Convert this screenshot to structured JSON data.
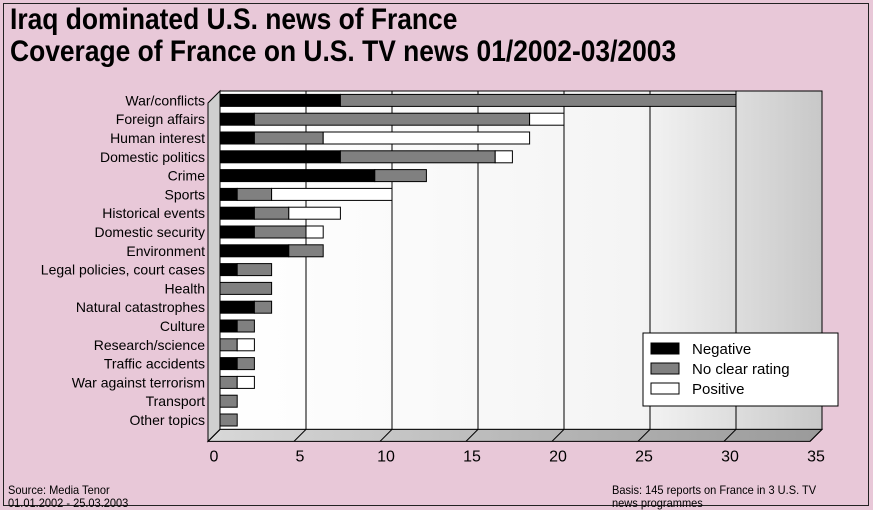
{
  "header": {
    "title_line1": "Iraq dominated U.S. news of France",
    "title_line2": "Coverage of France on U.S. TV news 01/2002-03/2003"
  },
  "footer": {
    "source_line1": "Source: Media Tenor",
    "source_line2": "01.01.2002 - 25.03.2003",
    "basis_line1": "Basis: 145 reports on France in 3 U.S. TV",
    "basis_line2": "news programmes"
  },
  "colors": {
    "negative": "#000000",
    "no_clear_rating": "#808080",
    "positive": "#ffffff",
    "background": "#e8c8d8"
  },
  "chart_data": {
    "type": "bar",
    "orientation": "horizontal",
    "stacked": true,
    "title": "Coverage of France on U.S. TV news 01/2002-03/2003",
    "xlim": [
      0,
      35
    ],
    "xticks": [
      0,
      5,
      10,
      15,
      20,
      25,
      30,
      35
    ],
    "grid": true,
    "legend_position": "bottom-right",
    "categories": [
      "War/conflicts",
      "Foreign affairs",
      "Human interest",
      "Domestic politics",
      "Crime",
      "Sports",
      "Historical events",
      "Domestic security",
      "Environment",
      "Legal policies, court cases",
      "Health",
      "Natural catastrophes",
      "Culture",
      "Research/science",
      "Traffic accidents",
      "War against terrorism",
      "Transport",
      "Other topics"
    ],
    "series": [
      {
        "name": "Negative",
        "color": "#000000",
        "values": [
          7,
          2,
          2,
          7,
          9,
          1,
          2,
          2,
          4,
          1,
          0,
          2,
          1,
          0,
          1,
          0,
          0,
          0
        ]
      },
      {
        "name": "No clear rating",
        "color": "#808080",
        "values": [
          23,
          16,
          4,
          9,
          3,
          2,
          2,
          3,
          2,
          2,
          3,
          1,
          1,
          1,
          1,
          1,
          1,
          1
        ]
      },
      {
        "name": "Positive",
        "color": "#ffffff",
        "values": [
          0,
          2,
          12,
          1,
          0,
          7,
          3,
          1,
          0,
          0,
          0,
          0,
          0,
          1,
          0,
          1,
          0,
          0
        ]
      }
    ]
  }
}
